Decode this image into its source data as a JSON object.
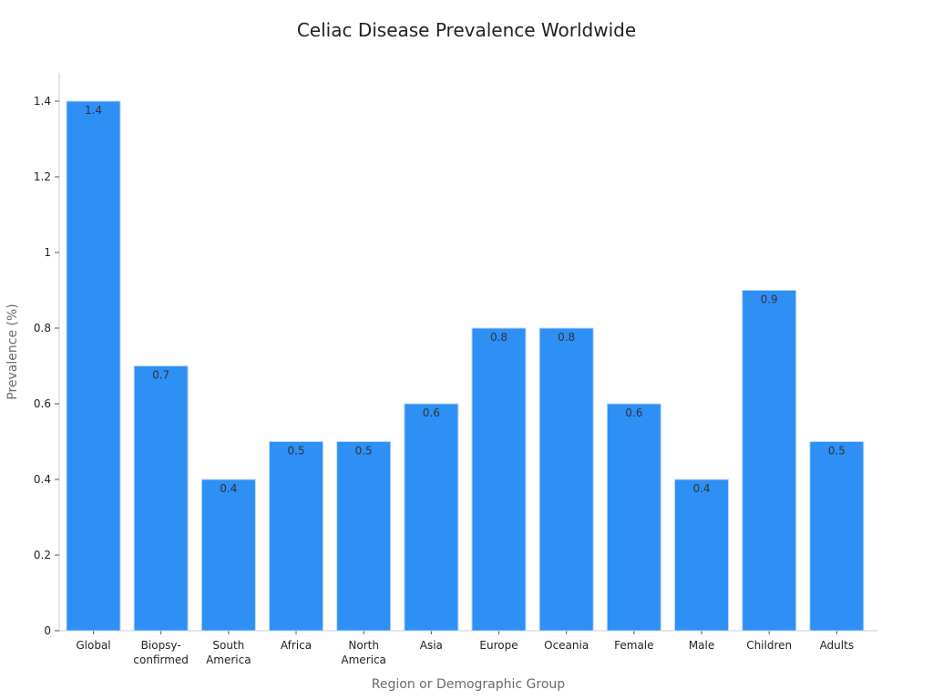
{
  "chart_data": {
    "type": "bar",
    "title": "Celiac Disease Prevalence Worldwide",
    "xlabel": "Region or Demographic Group",
    "ylabel": "Prevalence (%)",
    "categories": [
      [
        "Global"
      ],
      [
        "Biopsy-",
        "confirmed"
      ],
      [
        "South",
        "America"
      ],
      [
        "Africa"
      ],
      [
        "North",
        "America"
      ],
      [
        "Asia"
      ],
      [
        "Europe"
      ],
      [
        "Oceania"
      ],
      [
        "Female"
      ],
      [
        "Male"
      ],
      [
        "Children"
      ],
      [
        "Adults"
      ]
    ],
    "values": [
      1.4,
      0.7,
      0.4,
      0.5,
      0.5,
      0.6,
      0.8,
      0.8,
      0.6,
      0.4,
      0.9,
      0.5
    ],
    "ylim": [
      0,
      1.4
    ],
    "yticks": [
      0,
      0.2,
      0.4,
      0.6,
      0.8,
      1,
      1.2,
      1.4
    ],
    "grid": false,
    "bar_color": "#2e8ff5"
  }
}
